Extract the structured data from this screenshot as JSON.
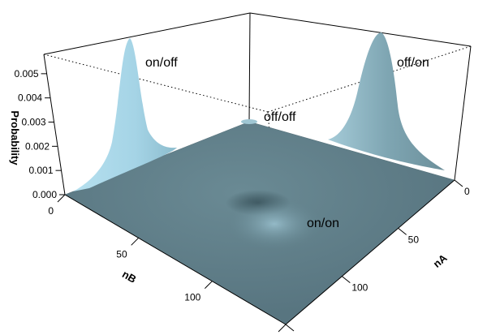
{
  "chart_data": {
    "type": "surface",
    "title": "",
    "zlabel": "Probability",
    "xlabel": "nB",
    "ylabel": "nA",
    "zlim": [
      0,
      0.0058
    ],
    "z_ticks": [
      "0.000",
      "0.001",
      "0.002",
      "0.003",
      "0.004",
      "0.005"
    ],
    "nb_ticks": [
      "0",
      "50",
      "100"
    ],
    "na_ticks": [
      "0",
      "50",
      "100"
    ],
    "nb_range": [
      0,
      150
    ],
    "na_range": [
      0,
      150
    ],
    "peaks": [
      {
        "label": "on/off",
        "nA": 0,
        "nB": 0,
        "height": 0.0055
      },
      {
        "label": "off/on",
        "nA": 150,
        "nB": 150,
        "height": 0.0055
      },
      {
        "label": "off/off",
        "nA": 0,
        "nB": 150,
        "height": 0.0002
      },
      {
        "label": "on/on",
        "nA": 150,
        "nB": 0,
        "height": 0.0003
      }
    ],
    "surface_color": "#5f7f89",
    "peak_color": "#a5d4e6",
    "grid": false
  }
}
